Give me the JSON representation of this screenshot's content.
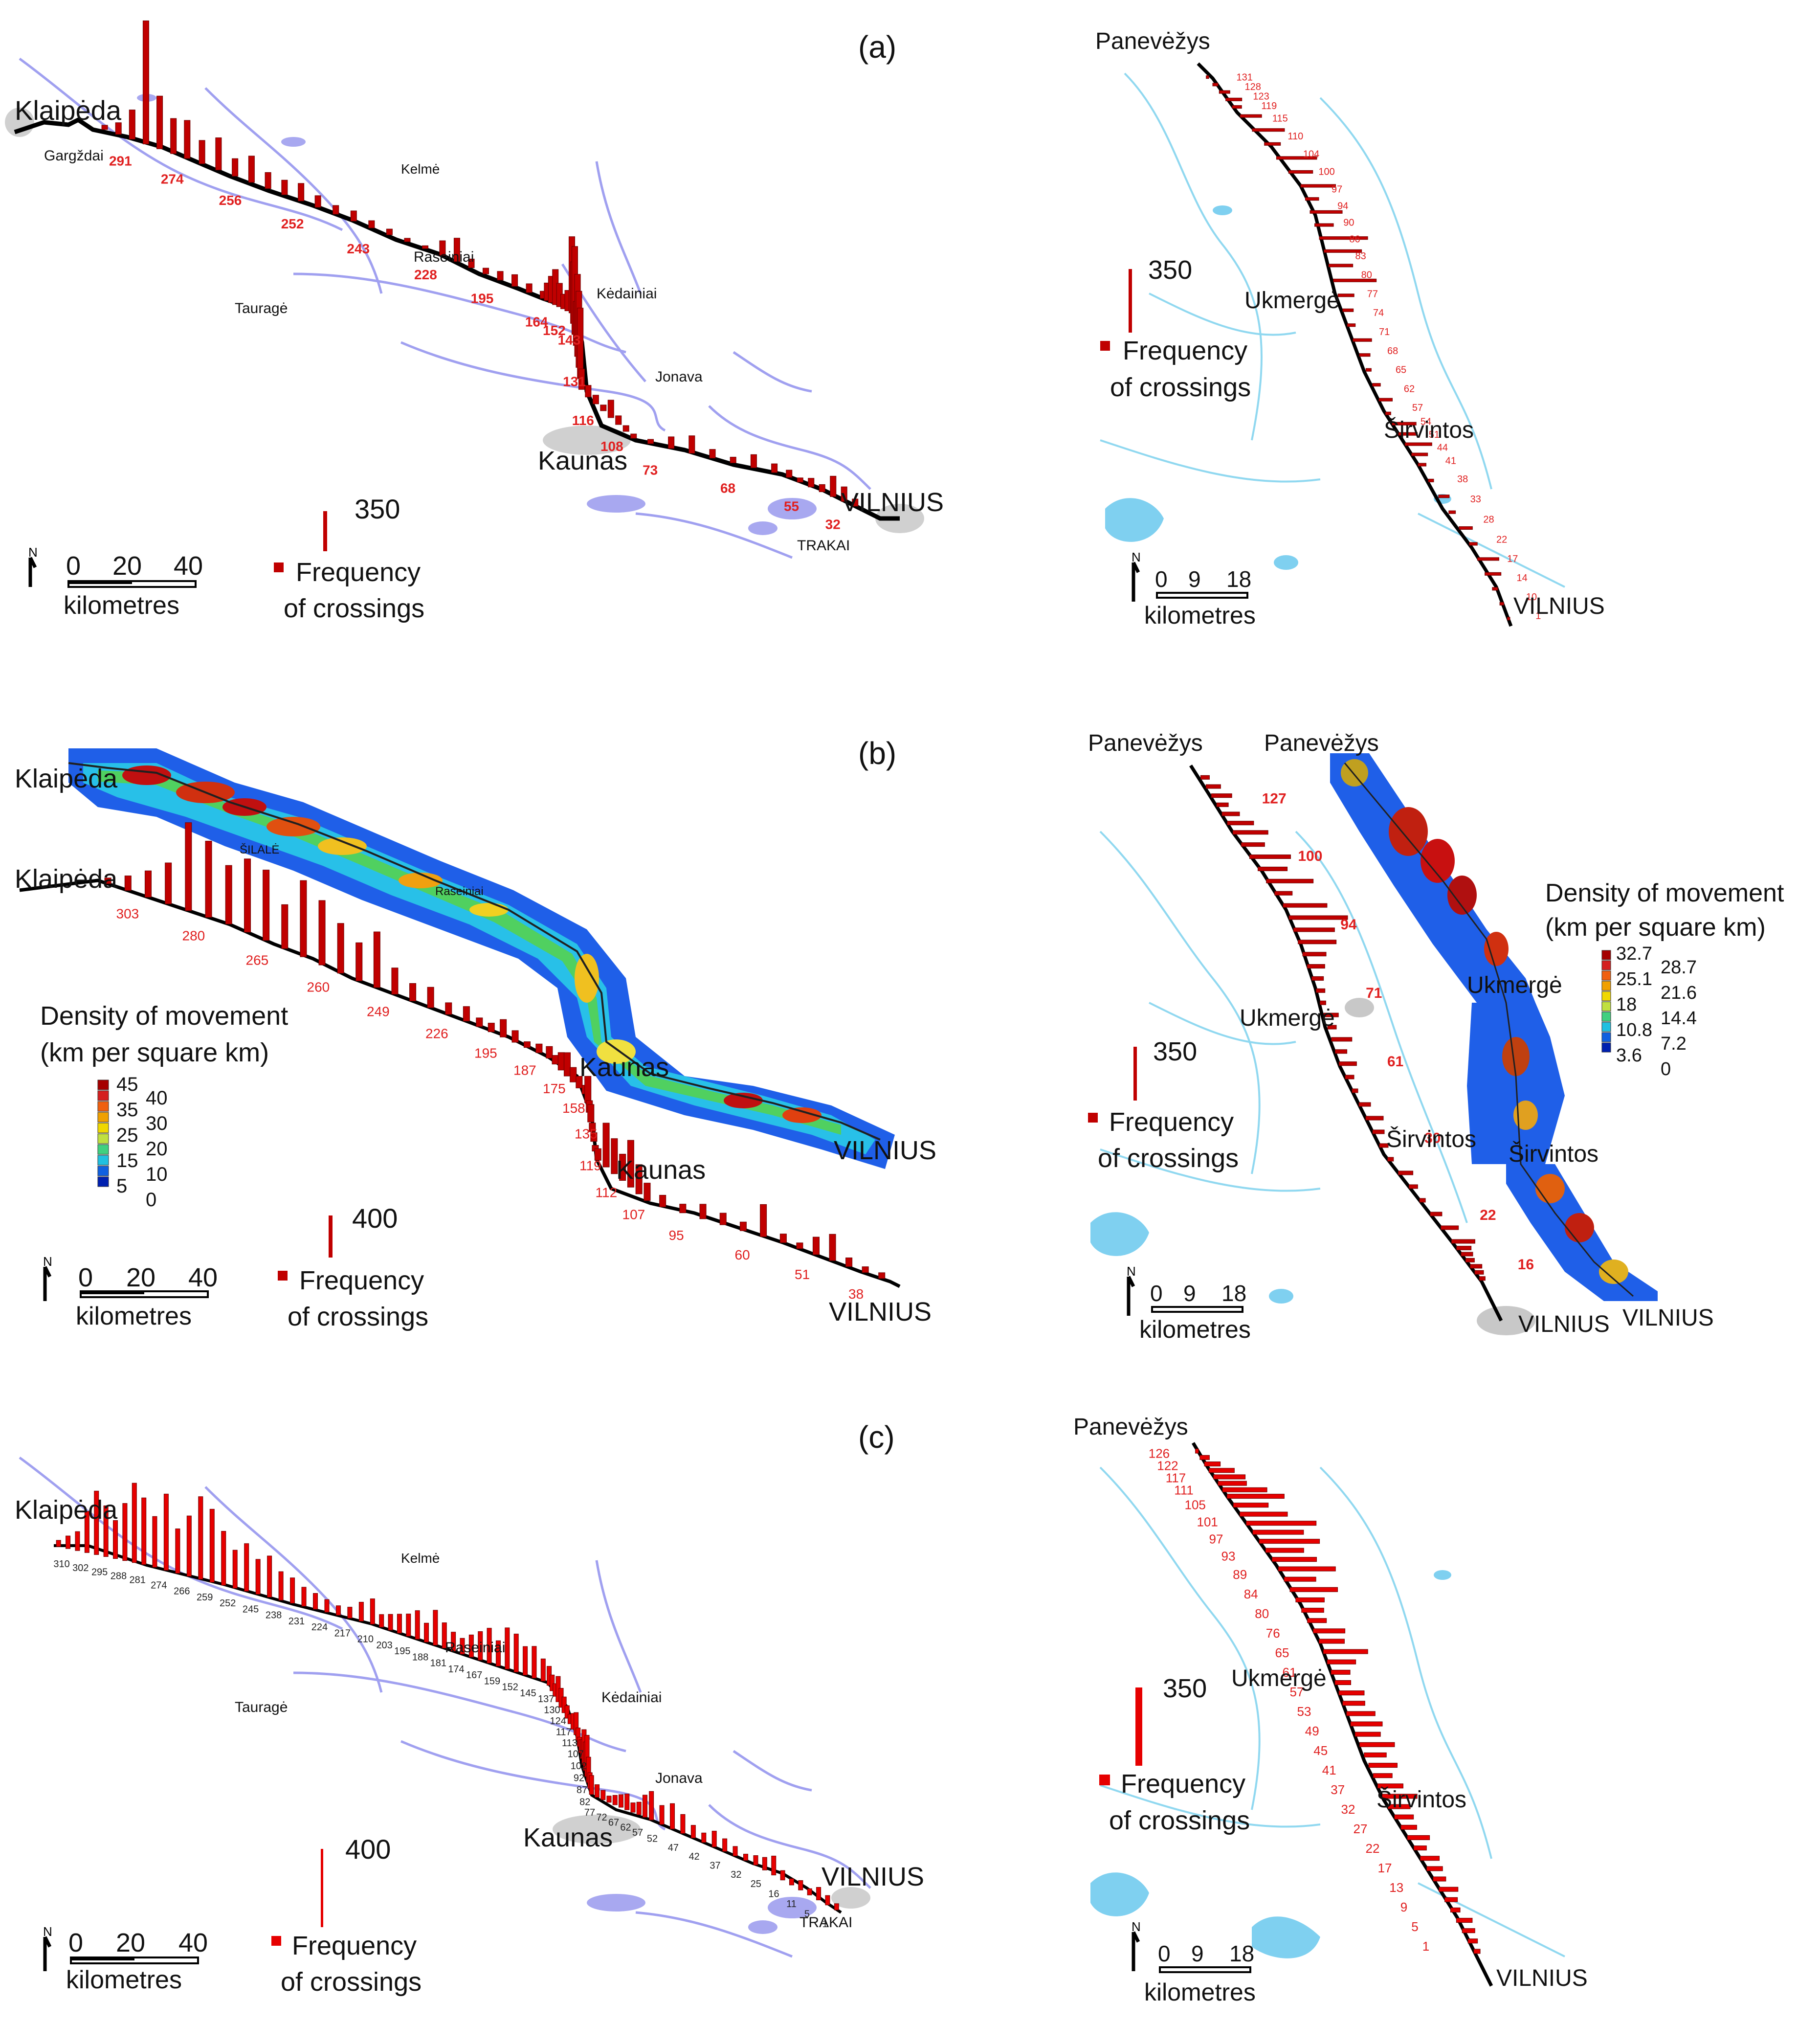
{
  "panels": [
    {
      "id": "a",
      "label": "(a)",
      "legend": {
        "bar_value": "350",
        "text_line1": "Frequency",
        "text_line2": "of crossings"
      },
      "scale": {
        "labels": [
          "0",
          "20",
          "40"
        ],
        "unit": "kilometres"
      },
      "cities": [
        {
          "name": "Klaipėda",
          "big": true
        },
        {
          "name": "Kaunas",
          "big": true
        },
        {
          "name": "VILNIUS",
          "big": true
        },
        {
          "name": "Gargždai"
        },
        {
          "name": "Kelmė"
        },
        {
          "name": "Raseiniai"
        },
        {
          "name": "Kėdainiai"
        },
        {
          "name": "Tauragė"
        },
        {
          "name": "Jonava"
        },
        {
          "name": "TRAKAI"
        }
      ],
      "km_labels": [
        "291",
        "274",
        "256",
        "252",
        "243",
        "228",
        "195",
        "164",
        "152",
        "143",
        "131",
        "116",
        "108",
        "73",
        "68",
        "55",
        "32"
      ],
      "bar_heights": [
        15,
        40,
        100,
        420,
        180,
        120,
        130,
        80,
        110,
        60,
        90,
        55,
        50,
        60,
        40,
        30,
        35,
        25,
        20,
        12,
        10,
        50,
        80,
        30,
        20,
        30,
        40,
        30,
        25,
        60,
        90,
        120,
        80,
        50,
        70,
        260,
        210,
        300,
        150,
        280,
        260,
        240,
        70,
        40,
        30,
        20,
        60,
        30,
        20,
        15,
        15,
        40,
        60,
        30,
        20,
        45,
        30,
        25,
        15,
        30,
        25,
        70,
        50,
        25
      ]
    },
    {
      "id": "a2",
      "legend": {
        "bar_value": "350",
        "text_line1": "Frequency",
        "text_line2": "of crossings"
      },
      "scale": {
        "labels": [
          "0",
          "9",
          "18"
        ],
        "unit": "kilometres"
      },
      "cities": [
        {
          "name": "Panevėžys"
        },
        {
          "name": "Ukmergė"
        },
        {
          "name": "Širvintos"
        },
        {
          "name": "VILNIUS"
        }
      ],
      "km_labels": [
        "131",
        "128",
        "123",
        "119",
        "115",
        "110",
        "104",
        "100",
        "97",
        "94",
        "90",
        "86",
        "83",
        "80",
        "77",
        "74",
        "71",
        "68",
        "65",
        "62",
        "57",
        "54",
        "51",
        "44",
        "41",
        "38",
        "33",
        "28",
        "22",
        "17",
        "14",
        "10",
        "1"
      ],
      "bar_heights": [
        10,
        20,
        40,
        60,
        35,
        80,
        120,
        60,
        150,
        90,
        130,
        50,
        120,
        70,
        180,
        140,
        90,
        160,
        60,
        40,
        30,
        70,
        40,
        20,
        30,
        50,
        20,
        90,
        70,
        100,
        60,
        30,
        20,
        40,
        25,
        50,
        30,
        80,
        60,
        20,
        15,
        10
      ]
    },
    {
      "id": "b",
      "label": "(b)",
      "legend": {
        "bar_value": "400",
        "text_line1": "Frequency",
        "text_line2": "of crossings"
      },
      "density_legend": {
        "title_line1": "Density of movement",
        "title_line2": "(km per square km)",
        "col1": [
          "45",
          "35",
          "25",
          "15",
          "5"
        ],
        "col2": [
          "40",
          "30",
          "20",
          "10",
          "0"
        ],
        "colors": [
          "#a50000",
          "#d42020",
          "#f06010",
          "#f0a000",
          "#f0d800",
          "#c0e040",
          "#40d080",
          "#20c0e0",
          "#1060e0",
          "#0020b0"
        ]
      },
      "scale": {
        "labels": [
          "0",
          "20",
          "40"
        ],
        "unit": "kilometres"
      },
      "cities": [
        {
          "name": "Klaipėda"
        },
        {
          "name": "Klaipėda"
        },
        {
          "name": "ŠILALĖ"
        },
        {
          "name": "Raseiniai"
        },
        {
          "name": "Kaunas"
        },
        {
          "name": "Kaunas"
        },
        {
          "name": "VILNIUS"
        },
        {
          "name": "VILNIUS"
        }
      ],
      "km_labels": [
        "303",
        "280",
        "265",
        "260",
        "249",
        "226",
        "195",
        "187",
        "175",
        "158",
        "135",
        "119",
        "112",
        "107",
        "95",
        "60",
        "51",
        "38"
      ],
      "bar_heights": [
        20,
        50,
        90,
        140,
        300,
        260,
        200,
        250,
        240,
        150,
        260,
        220,
        170,
        130,
        190,
        90,
        60,
        70,
        40,
        50,
        30,
        30,
        60,
        40,
        20,
        30,
        40,
        30,
        60,
        80,
        50,
        40,
        30,
        90,
        40,
        60,
        30,
        30,
        20,
        40,
        150,
        120,
        90,
        160,
        100,
        60,
        40,
        30,
        50,
        40,
        30,
        110,
        30,
        20,
        60,
        90,
        30,
        20,
        20
      ]
    },
    {
      "id": "b2",
      "legend": {
        "bar_value": "350",
        "text_line1": "Frequency",
        "text_line2": "of crossings"
      },
      "density_legend": {
        "title_line1": "Density of movement",
        "title_line2": "(km per square km)",
        "col1": [
          "32.7",
          "25.1",
          "18",
          "10.8",
          "3.6"
        ],
        "col2": [
          "28.7",
          "21.6",
          "14.4",
          "7.2",
          "0"
        ],
        "colors": [
          "#a50000",
          "#d42020",
          "#f06010",
          "#f0a000",
          "#f0d800",
          "#c0e040",
          "#40d080",
          "#20c0e0",
          "#1060e0",
          "#0020b0"
        ]
      },
      "scale": {
        "labels": [
          "0",
          "9",
          "18"
        ],
        "unit": "kilometres"
      },
      "cities": [
        {
          "name": "Panevėžys"
        },
        {
          "name": "Panevėžys"
        },
        {
          "name": "Ukmergė"
        },
        {
          "name": "Ukmergė"
        },
        {
          "name": "Širvintos"
        },
        {
          "name": "Širvintos"
        },
        {
          "name": "VILNIUS"
        },
        {
          "name": "VILNIUS"
        }
      ],
      "km_labels": [
        "127",
        "100",
        "94",
        "71",
        "61",
        "30",
        "22",
        "16"
      ],
      "bar_heights": [
        30,
        50,
        70,
        40,
        60,
        90,
        120,
        80,
        140,
        100,
        160,
        60,
        150,
        200,
        140,
        130,
        80,
        60,
        40,
        30,
        20,
        50,
        30,
        70,
        40,
        60,
        30,
        20,
        40,
        60,
        40,
        30,
        20,
        50,
        30,
        20,
        40,
        60,
        80,
        50,
        40,
        30,
        40,
        30,
        20
      ]
    },
    {
      "id": "c",
      "label": "(c)",
      "legend": {
        "bar_value": "400",
        "text_line1": "Frequency",
        "text_line2": "of crossings"
      },
      "scale": {
        "labels": [
          "0",
          "20",
          "40"
        ],
        "unit": "kilometres"
      },
      "cities": [
        {
          "name": "Klaipėda"
        },
        {
          "name": "Kelmė"
        },
        {
          "name": "Raseiniai"
        },
        {
          "name": "Kėdainiai"
        },
        {
          "name": "Tauragė"
        },
        {
          "name": "Jonava"
        },
        {
          "name": "Kaunas"
        },
        {
          "name": "VILNIUS"
        },
        {
          "name": "TRAKAI"
        }
      ],
      "km_labels": [
        "310",
        "302",
        "295",
        "288",
        "281",
        "274",
        "266",
        "259",
        "252",
        "245",
        "238",
        "231",
        "224",
        "217",
        "210",
        "203",
        "195",
        "188",
        "181",
        "174",
        "167",
        "159",
        "152",
        "145",
        "137",
        "130",
        "124",
        "117",
        "113",
        "107",
        "102",
        "92",
        "87",
        "82",
        "77",
        "72",
        "67",
        "62",
        "57",
        "52",
        "47",
        "42",
        "37",
        "32",
        "25",
        "16",
        "11",
        "5",
        "1"
      ],
      "bar_heights": [
        20,
        40,
        60,
        130,
        200,
        160,
        120,
        180,
        250,
        210,
        160,
        240,
        140,
        190,
        260,
        230,
        170,
        120,
        150,
        110,
        130,
        90,
        80,
        60,
        50,
        40,
        30,
        35,
        60,
        80,
        40,
        50,
        60,
        70,
        90,
        60,
        110,
        80,
        60,
        50,
        70,
        90,
        110,
        80,
        130,
        120,
        90,
        100,
        70,
        60,
        50,
        40,
        80,
        60,
        50,
        40,
        30,
        50,
        70,
        40,
        30,
        40,
        60,
        110,
        90,
        130,
        80,
        50,
        60,
        40,
        30,
        20,
        30,
        40,
        50,
        30,
        40,
        70,
        90,
        60,
        80,
        60,
        40,
        30,
        50,
        40,
        30,
        20,
        30,
        40,
        60,
        30,
        20,
        30,
        20,
        40,
        30,
        20
      ]
    },
    {
      "id": "c2",
      "legend": {
        "bar_value": "350",
        "text_line1": "Frequency",
        "text_line2": "of crossings"
      },
      "scale": {
        "labels": [
          "0",
          "9",
          "18"
        ],
        "unit": "kilometres"
      },
      "cities": [
        {
          "name": "Panevėžys"
        },
        {
          "name": "Ukmergė"
        },
        {
          "name": "Širvintos"
        },
        {
          "name": "VILNIUS"
        }
      ],
      "km_labels": [
        "126",
        "122",
        "117",
        "111",
        "105",
        "101",
        "97",
        "93",
        "89",
        "84",
        "80",
        "76",
        "65",
        "61",
        "57",
        "53",
        "49",
        "45",
        "41",
        "37",
        "32",
        "27",
        "22",
        "17",
        "13",
        "9",
        "5",
        "1"
      ],
      "bar_heights": [
        10,
        30,
        50,
        80,
        100,
        90,
        140,
        180,
        110,
        150,
        220,
        160,
        190,
        120,
        140,
        180,
        100,
        150,
        90,
        70,
        60,
        100,
        80,
        140,
        90,
        60,
        50,
        80,
        70,
        90,
        100,
        80,
        110,
        70,
        90,
        60,
        80,
        110,
        70,
        60,
        50,
        70,
        40,
        60,
        50,
        40,
        60,
        40,
        30,
        50,
        40,
        30,
        20
      ]
    }
  ],
  "colors": {
    "bar": "#c00000",
    "bar_bright": "#e60000",
    "route": "#000000",
    "water": "#9090e8",
    "water_light": "#7fd0f0",
    "urban": "#c8c8c8",
    "label_red": "#e02020"
  }
}
